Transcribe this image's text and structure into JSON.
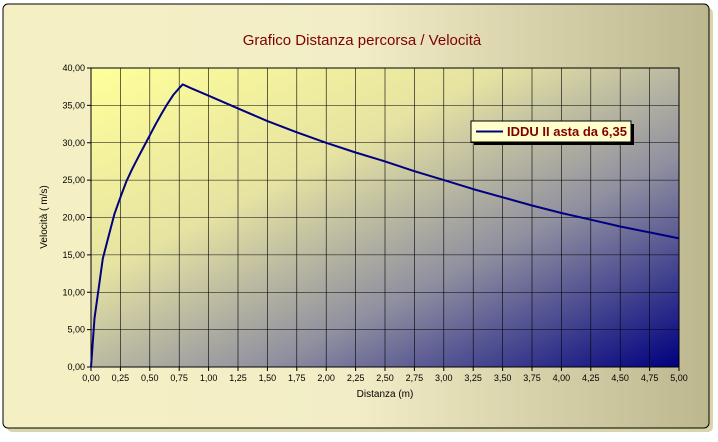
{
  "chart_data": {
    "type": "line",
    "title": "Grafico Distanza percorsa / Velocità",
    "xlabel": "Distanza (m)",
    "ylabel": "Velocità ( m/s)",
    "xlim": [
      0,
      5
    ],
    "ylim": [
      0,
      40
    ],
    "x_ticks": [
      "0,00",
      "0,25",
      "0,50",
      "0,75",
      "1,00",
      "1,25",
      "1,50",
      "1,75",
      "2,00",
      "2,25",
      "2,50",
      "2,75",
      "3,00",
      "3,25",
      "3,50",
      "3,75",
      "4,00",
      "4,25",
      "4,50",
      "4,75",
      "5,00"
    ],
    "y_ticks": [
      "0,00",
      "5,00",
      "10,00",
      "15,00",
      "20,00",
      "25,00",
      "30,00",
      "35,00",
      "40,00"
    ],
    "grid": true,
    "legend_position": "right",
    "series": [
      {
        "name": "IDDU II asta da 6,35",
        "color": "#000080",
        "x": [
          0.0,
          0.03,
          0.1,
          0.15,
          0.2,
          0.25,
          0.3,
          0.35,
          0.4,
          0.45,
          0.5,
          0.55,
          0.6,
          0.65,
          0.7,
          0.75,
          0.78,
          0.85,
          1.0,
          1.25,
          1.5,
          1.75,
          2.0,
          2.25,
          2.5,
          2.75,
          3.0,
          3.25,
          3.5,
          3.75,
          4.0,
          4.25,
          4.5,
          4.75,
          5.0
        ],
        "y": [
          0.0,
          6.5,
          14.5,
          17.5,
          20.5,
          22.7,
          24.8,
          26.5,
          28.0,
          29.5,
          31.0,
          32.5,
          33.9,
          35.2,
          36.4,
          37.3,
          37.8,
          37.3,
          36.3,
          34.6,
          32.9,
          31.4,
          30.0,
          28.7,
          27.5,
          26.2,
          25.0,
          23.8,
          22.7,
          21.6,
          20.6,
          19.7,
          18.8,
          18.0,
          17.2
        ]
      }
    ]
  }
}
